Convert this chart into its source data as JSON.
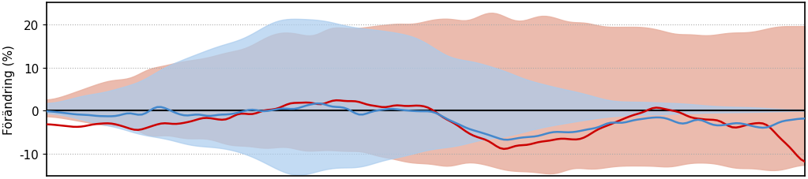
{
  "ylabel": "Förändring (%)",
  "ylim": [
    -15,
    25
  ],
  "yticks": [
    -10,
    0,
    10,
    20
  ],
  "n_points": 200,
  "background_color": "#ffffff",
  "red_line_color": "#cc0000",
  "blue_line_color": "#4488cc",
  "red_fill_color": "#e8b0a0",
  "blue_fill_color": "#aaccee",
  "zero_line_color": "#000000",
  "grid_color": "#aaaaaa",
  "ylabel_fontsize": 11,
  "tick_fontsize": 11
}
